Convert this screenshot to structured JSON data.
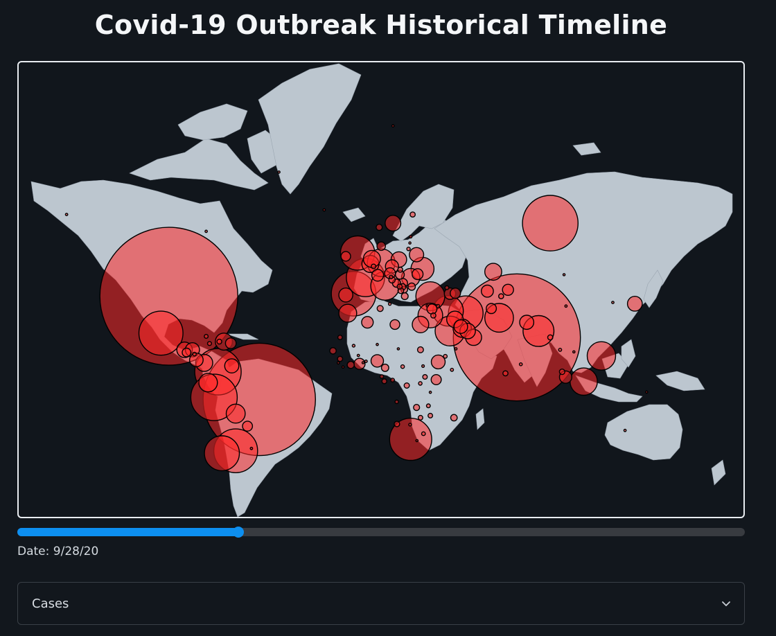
{
  "title": "Covid-19 Outbreak Historical Timeline",
  "timeline": {
    "date_label": "Date:",
    "date_value": "9/28/20",
    "progress_fraction": 0.304
  },
  "metric_select": {
    "selected": "Cases"
  },
  "colors": {
    "background": "#12171d",
    "land": "#bcc6cf",
    "bubble_fill": "#ff2a2a",
    "bubble_stroke": "#000000",
    "slider_accent": "#0d8ff0"
  },
  "icons": {
    "select": "chevron-down-icon"
  },
  "map": {
    "projection": "mercator",
    "marker_label": "case-bubble",
    "bubbles": [
      {
        "region": "United States",
        "lon": -98,
        "lat": 39,
        "cases": 7150000
      },
      {
        "region": "Brazil",
        "lon": -52,
        "lat": -10,
        "cases": 4750000
      },
      {
        "region": "India",
        "lon": 79,
        "lat": 21,
        "cases": 6070000
      },
      {
        "region": "Russia",
        "lon": 96,
        "lat": 62,
        "cases": 1160000
      },
      {
        "region": "Mexico",
        "lon": -102,
        "lat": 23,
        "cases": 730000
      },
      {
        "region": "Colombia",
        "lon": -73,
        "lat": 4,
        "cases": 810000
      },
      {
        "region": "Peru",
        "lon": -75,
        "lat": -9,
        "cases": 810000
      },
      {
        "region": "Argentina",
        "lon": -64,
        "lat": -34,
        "cases": 720000
      },
      {
        "region": "Chile",
        "lon": -71,
        "lat": -35,
        "cases": 460000
      },
      {
        "region": "South Africa",
        "lon": 25,
        "lat": -29,
        "cases": 670000
      },
      {
        "region": "Spain",
        "lon": -4,
        "lat": 40,
        "cases": 750000
      },
      {
        "region": "France",
        "lon": 2,
        "lat": 46,
        "cases": 550000
      },
      {
        "region": "United Kingdom",
        "lon": -2,
        "lat": 54,
        "cases": 440000
      },
      {
        "region": "Italy",
        "lon": 12,
        "lat": 43,
        "cases": 310000
      },
      {
        "region": "Germany",
        "lon": 10,
        "lat": 51,
        "cases": 290000
      },
      {
        "region": "Iran",
        "lon": 53,
        "lat": 32,
        "cases": 450000
      },
      {
        "region": "Turkey",
        "lon": 35,
        "lat": 39,
        "cases": 315000
      },
      {
        "region": "Saudi Arabia",
        "lon": 45,
        "lat": 24,
        "cases": 333000
      },
      {
        "region": "Iraq",
        "lon": 44,
        "lat": 33,
        "cases": 350000
      },
      {
        "region": "Pakistan",
        "lon": 70,
        "lat": 30,
        "cases": 311000
      },
      {
        "region": "Bangladesh",
        "lon": 90,
        "lat": 24,
        "cases": 360000
      },
      {
        "region": "Indonesia",
        "lon": 113,
        "lat": -1,
        "cases": 280000
      },
      {
        "region": "Philippines",
        "lon": 122,
        "lat": 12,
        "cases": 305000
      },
      {
        "region": "Ukraine",
        "lon": 31,
        "lat": 49,
        "cases": 200000
      },
      {
        "region": "Poland",
        "lon": 19,
        "lat": 52,
        "cases": 90000
      },
      {
        "region": "Kazakhstan",
        "lon": 67,
        "lat": 48,
        "cases": 107000
      },
      {
        "region": "Egypt",
        "lon": 30,
        "lat": 27,
        "cases": 103000
      },
      {
        "region": "Israel",
        "lon": 35,
        "lat": 31,
        "cases": 230000
      },
      {
        "region": "Ecuador",
        "lon": -78,
        "lat": -1.5,
        "cases": 130000
      },
      {
        "region": "Bolivia",
        "lon": -64,
        "lat": -17,
        "cases": 135000
      },
      {
        "region": "Venezuela",
        "lon": -66,
        "lat": 7,
        "cases": 75000
      },
      {
        "region": "Guatemala",
        "lon": -90,
        "lat": 15,
        "cases": 90000
      },
      {
        "region": "Honduras",
        "lon": -86,
        "lat": 15,
        "cases": 75000
      },
      {
        "region": "Panama",
        "lon": -80,
        "lat": 8.5,
        "cases": 110000
      },
      {
        "region": "Dominican Republic",
        "lon": -70,
        "lat": 19,
        "cases": 110000
      },
      {
        "region": "Morocco",
        "lon": -7,
        "lat": 32,
        "cases": 120000
      },
      {
        "region": "Algeria",
        "lon": 3,
        "lat": 28,
        "cases": 51000
      },
      {
        "region": "Ethiopia",
        "lon": 39,
        "lat": 9,
        "cases": 72000
      },
      {
        "region": "Nigeria",
        "lon": 8,
        "lat": 9.5,
        "cases": 58000
      },
      {
        "region": "Kenya",
        "lon": 38,
        "lat": 0,
        "cases": 38000
      },
      {
        "region": "Sweden",
        "lon": 16,
        "lat": 62,
        "cases": 92000
      },
      {
        "region": "Belgium",
        "lon": 4.5,
        "lat": 50.6,
        "cases": 110000
      },
      {
        "region": "Netherlands",
        "lon": 5.3,
        "lat": 52.2,
        "cases": 110000
      },
      {
        "region": "Romania",
        "lon": 25,
        "lat": 46,
        "cases": 125000
      },
      {
        "region": "Czech Republic",
        "lon": 15.5,
        "lat": 49.8,
        "cases": 65000
      },
      {
        "region": "Portugal",
        "lon": -8,
        "lat": 39.5,
        "cases": 73000
      },
      {
        "region": "Japan",
        "lon": 139,
        "lat": 36,
        "cases": 82000
      },
      {
        "region": "Nepal",
        "lon": 84,
        "lat": 28,
        "cases": 75000
      },
      {
        "region": "Oman",
        "lon": 57,
        "lat": 21,
        "cases": 98000
      },
      {
        "region": "Kuwait",
        "lon": 47.5,
        "lat": 29.3,
        "cases": 103000
      },
      {
        "region": "Qatar",
        "lon": 51.2,
        "lat": 25.3,
        "cases": 125000
      },
      {
        "region": "UAE",
        "lon": 54,
        "lat": 24,
        "cases": 90000
      },
      {
        "region": "Uzbekistan",
        "lon": 64,
        "lat": 41,
        "cases": 55000
      },
      {
        "region": "Belarus",
        "lon": 28,
        "lat": 53.5,
        "cases": 77000
      },
      {
        "region": "Myanmar",
        "lon": 96,
        "lat": 21,
        "cases": 10000
      },
      {
        "region": "Cameroon",
        "lon": 12,
        "lat": 6,
        "cases": 20000
      },
      {
        "region": "Ghana",
        "lon": -1,
        "lat": 8,
        "cases": 46000
      },
      {
        "region": "Costa Rica",
        "lon": -84,
        "lat": 10,
        "cases": 70000
      },
      {
        "region": "El Salvador",
        "lon": -89,
        "lat": 13.7,
        "cases": 28000
      },
      {
        "region": "Puerto Rico",
        "lon": -66.5,
        "lat": 18.2,
        "cases": 43000
      },
      {
        "region": "Paraguay",
        "lon": -58,
        "lat": -23,
        "cases": 37000
      },
      {
        "region": "Jordan",
        "lon": 36.5,
        "lat": 31,
        "cases": 10000
      },
      {
        "region": "Lebanon",
        "lon": 35.8,
        "lat": 33.8,
        "cases": 37000
      },
      {
        "region": "Libya",
        "lon": 17,
        "lat": 27,
        "cases": 35000
      },
      {
        "region": "Armenia",
        "lon": 45,
        "lat": 40,
        "cases": 49000
      },
      {
        "region": "Azerbaijan",
        "lon": 47.7,
        "lat": 40.2,
        "cases": 40000
      },
      {
        "region": "Kyrgyzstan",
        "lon": 74.5,
        "lat": 41.5,
        "cases": 46000
      },
      {
        "region": "Moldova",
        "lon": 28.5,
        "lat": 47.2,
        "cases": 45000
      },
      {
        "region": "Bahrain",
        "lon": 50.5,
        "lat": 26,
        "cases": 70000
      },
      {
        "region": "Switzerland",
        "lon": 8.2,
        "lat": 46.8,
        "cases": 52000
      },
      {
        "region": "Austria",
        "lon": 14.5,
        "lat": 47.5,
        "cases": 44000
      },
      {
        "region": "Serbia",
        "lon": 21,
        "lat": 44,
        "cases": 33000
      },
      {
        "region": "Ireland",
        "lon": -8,
        "lat": 53,
        "cases": 34000
      },
      {
        "region": "Sudan",
        "lon": 30,
        "lat": 15,
        "cases": 13600
      },
      {
        "region": "Madagascar",
        "lon": 47,
        "lat": -19,
        "cases": 16000
      },
      {
        "region": "Zambia",
        "lon": 28,
        "lat": -14,
        "cases": 14000
      },
      {
        "region": "Senegal",
        "lon": -14.5,
        "lat": 14.5,
        "cases": 15000
      },
      {
        "region": "Ivory Coast",
        "lon": -5.5,
        "lat": 7.5,
        "cases": 19000
      },
      {
        "region": "Guinea",
        "lon": -10.9,
        "lat": 10.5,
        "cases": 10000
      },
      {
        "region": "DR Congo",
        "lon": 23,
        "lat": -3,
        "cases": 10500
      },
      {
        "region": "Gabon",
        "lon": 11.6,
        "lat": -0.8,
        "cases": 8700
      },
      {
        "region": "Mozambique",
        "lon": 35,
        "lat": -18,
        "cases": 8000
      },
      {
        "region": "Zimbabwe",
        "lon": 30,
        "lat": -19,
        "cases": 7800
      },
      {
        "region": "Namibia",
        "lon": 18,
        "lat": -22,
        "cases": 11000
      },
      {
        "region": "Denmark",
        "lon": 10,
        "lat": 56,
        "cases": 27000
      },
      {
        "region": "Finland",
        "lon": 26,
        "lat": 64,
        "cases": 10000
      },
      {
        "region": "Norway",
        "lon": 9,
        "lat": 61,
        "cases": 14000
      },
      {
        "region": "Greece",
        "lon": 22,
        "lat": 39,
        "cases": 17000
      },
      {
        "region": "Hungary",
        "lon": 19.5,
        "lat": 47,
        "cases": 30000
      },
      {
        "region": "Bulgaria",
        "lon": 25.5,
        "lat": 42.7,
        "cases": 20000
      },
      {
        "region": "Croatia",
        "lon": 15.5,
        "lat": 45.2,
        "cases": 15000
      },
      {
        "region": "Bosnia",
        "lon": 17.8,
        "lat": 44,
        "cases": 25000
      },
      {
        "region": "North Macedonia",
        "lon": 21.7,
        "lat": 41.6,
        "cases": 17000
      },
      {
        "region": "Tunisia",
        "lon": 9.5,
        "lat": 34,
        "cases": 14000
      },
      {
        "region": "Afghanistan",
        "lon": 66,
        "lat": 34,
        "cases": 39000
      },
      {
        "region": "Tajikistan",
        "lon": 71,
        "lat": 39,
        "cases": 9600
      },
      {
        "region": "Georgia",
        "lon": 43.4,
        "lat": 42.3,
        "cases": 5500
      },
      {
        "region": "Sri Lanka",
        "lon": 81,
        "lat": 7.8,
        "cases": 3300
      },
      {
        "region": "Malaysia",
        "lon": 102,
        "lat": 4,
        "cases": 11000
      },
      {
        "region": "Singapore",
        "lon": 103.8,
        "lat": 1.3,
        "cases": 57000
      },
      {
        "region": "China",
        "lon": 104,
        "lat": 35,
        "cases": 2000
      },
      {
        "region": "South Korea",
        "lon": 127.8,
        "lat": 36.5,
        "cases": 2000
      },
      {
        "region": "Australia",
        "lon": 134,
        "lat": -25,
        "cases": 2000
      },
      {
        "region": "Canada",
        "lon": -79,
        "lat": 60,
        "cases": 2000
      },
      {
        "region": "Iceland",
        "lon": -19,
        "lat": 65,
        "cases": 2000
      },
      {
        "region": "Cuba",
        "lon": -79,
        "lat": 21.5,
        "cases": 5600
      },
      {
        "region": "Jamaica",
        "lon": -77.3,
        "lat": 18.1,
        "cases": 6000
      },
      {
        "region": "Haiti",
        "lon": -72.3,
        "lat": 19,
        "cases": 8800
      },
      {
        "region": "Nicaragua",
        "lon": -85,
        "lat": 12.9,
        "cases": 5000
      },
      {
        "region": "Uruguay",
        "lon": -56,
        "lat": -33,
        "cases": 2000
      },
      {
        "region": "Somalia",
        "lon": 46,
        "lat": 5,
        "cases": 3500
      },
      {
        "region": "Mali",
        "lon": -4,
        "lat": 17,
        "cases": 3000
      },
      {
        "region": "Chad",
        "lon": 18.7,
        "lat": 15.5,
        "cases": 1200
      },
      {
        "region": "Niger",
        "lon": 8,
        "lat": 17.6,
        "cases": 1200
      },
      {
        "region": "Mauritania",
        "lon": -10.9,
        "lat": 21,
        "cases": 7500
      },
      {
        "region": "Angola",
        "lon": 17.9,
        "lat": -11.2,
        "cases": 4600
      },
      {
        "region": "Botswana",
        "lon": 24.7,
        "lat": -22.3,
        "cases": 2900
      },
      {
        "region": "Malawi",
        "lon": 34,
        "lat": -13.2,
        "cases": 5700
      },
      {
        "region": "Uganda",
        "lon": 32.3,
        "lat": 1.4,
        "cases": 7900
      },
      {
        "region": "Rwanda",
        "lon": 29.9,
        "lat": -1.9,
        "cases": 4800
      },
      {
        "region": "Tanzania",
        "lon": 35,
        "lat": -6.4,
        "cases": 1000
      },
      {
        "region": "CAR",
        "lon": 20.9,
        "lat": 6.6,
        "cases": 4800
      },
      {
        "region": "Congo",
        "lon": 15.8,
        "lat": -0.2,
        "cases": 5100
      },
      {
        "region": "Eq Guinea",
        "lon": 10.3,
        "lat": 1.6,
        "cases": 5000
      },
      {
        "region": "Sierra Leone",
        "lon": -11.8,
        "lat": 8.5,
        "cases": 2200
      },
      {
        "region": "Liberia",
        "lon": -9.4,
        "lat": 6.4,
        "cases": 1300
      },
      {
        "region": "Burkina Faso",
        "lon": -1.6,
        "lat": 12.2,
        "cases": 2000
      },
      {
        "region": "Togo",
        "lon": 0.8,
        "lat": 8.6,
        "cases": 1800
      },
      {
        "region": "Benin",
        "lon": 2.3,
        "lat": 9.3,
        "cases": 2300
      },
      {
        "region": "Eswatini",
        "lon": 31.5,
        "lat": -26.5,
        "cases": 5400
      },
      {
        "region": "Lesotho",
        "lon": 28.2,
        "lat": -29.6,
        "cases": 1600
      },
      {
        "region": "Djibouti",
        "lon": 42.6,
        "lat": 11.8,
        "cases": 5400
      },
      {
        "region": "South Sudan",
        "lon": 31.3,
        "lat": 6.9,
        "cases": 2700
      },
      {
        "region": "Yemen",
        "lon": 48,
        "lat": 15.5,
        "cases": 2000
      },
      {
        "region": "Syria",
        "lon": 38.9,
        "lat": 35,
        "cases": 4200
      },
      {
        "region": "Cyprus",
        "lon": 33.4,
        "lat": 35.1,
        "cases": 1700
      },
      {
        "region": "Lithuania",
        "lon": 23.9,
        "lat": 55.2,
        "cases": 4600
      },
      {
        "region": "Latvia",
        "lon": 24.6,
        "lat": 56.9,
        "cases": 1600
      },
      {
        "region": "Estonia",
        "lon": 25,
        "lat": 58.6,
        "cases": 3000
      },
      {
        "region": "Slovakia",
        "lon": 19.7,
        "lat": 48.7,
        "cases": 9300
      },
      {
        "region": "Slovenia",
        "lon": 15,
        "lat": 46.2,
        "cases": 5000
      },
      {
        "region": "Albania",
        "lon": 20,
        "lat": 41.2,
        "cases": 13000
      },
      {
        "region": "Montenegro",
        "lon": 19.4,
        "lat": 42.7,
        "cases": 9500
      },
      {
        "region": "Kosovo",
        "lon": 20.9,
        "lat": 42.6,
        "cases": 15000
      },
      {
        "region": "Luxembourg",
        "lon": 6.1,
        "lat": 49.8,
        "cases": 8000
      },
      {
        "region": "Malta",
        "lon": 14.4,
        "lat": 35.9,
        "cases": 3000
      },
      {
        "region": "Thailand",
        "lon": 101,
        "lat": 15,
        "cases": 3500
      },
      {
        "region": "Vietnam",
        "lon": 108,
        "lat": 14,
        "cases": 1100
      },
      {
        "region": "Papua New Guinea",
        "lon": 145,
        "lat": -6.3,
        "cases": 500
      },
      {
        "region": "Maldives",
        "lon": 73.2,
        "lat": 3.2,
        "cases": 10000
      },
      {
        "region": "Mongolia",
        "lon": 103,
        "lat": 47,
        "cases": 300
      },
      {
        "region": "Greenland",
        "lon": -42,
        "lat": 72,
        "cases": 14
      },
      {
        "region": "Alaska",
        "lon": -150,
        "lat": 64,
        "cases": 2000
      },
      {
        "region": "Svalbard",
        "lon": 16,
        "lat": 78,
        "cases": 2000
      }
    ]
  }
}
